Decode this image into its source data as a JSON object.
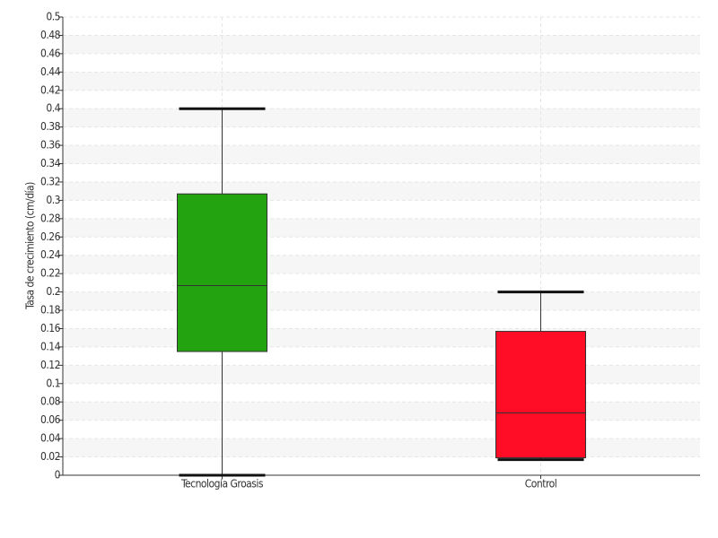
{
  "chart_data": {
    "type": "box",
    "y_label": "Tasa de crecimiento (cm/día)",
    "categories": [
      "Tecnología Groasis",
      "Control"
    ],
    "boxes": [
      {
        "min": 0,
        "q1": 0.135,
        "median": 0.207,
        "q3": 0.307,
        "max": 0.4,
        "color": "#22a30f"
      },
      {
        "min": 0.017,
        "q1": 0.019,
        "median": 0.068,
        "q3": 0.157,
        "max": 0.2,
        "color": "#ff0d26"
      }
    ],
    "ylim": [
      0,
      0.5
    ],
    "yticks": [
      0,
      0.02,
      0.04,
      0.06,
      0.08,
      0.1,
      0.12,
      0.14,
      0.16,
      0.18,
      0.2,
      0.22,
      0.24,
      0.26,
      0.28,
      0.3,
      0.32,
      0.34,
      0.36,
      0.38,
      0.4,
      0.42,
      0.44,
      0.46,
      0.48,
      0.5
    ],
    "grid": true
  }
}
